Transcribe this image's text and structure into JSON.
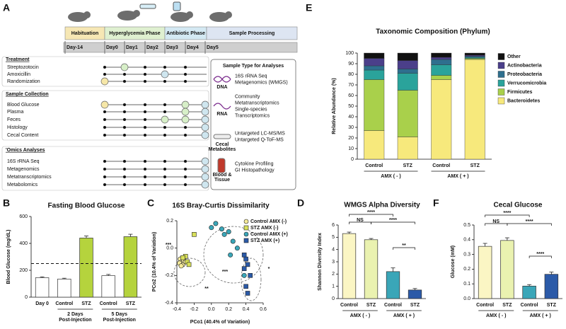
{
  "panel_a": {
    "label": "A",
    "phases": [
      "Habituation",
      "Hyperglycemia Phase",
      "Antibiotic Phase",
      "Sample Processing"
    ],
    "days": [
      "Day-14",
      "Day0",
      "Day1",
      "Day2",
      "Day3",
      "Day4",
      "Day5"
    ],
    "sections": [
      {
        "title": "Treatment",
        "rows": [
          "Streptozotocin",
          "Amoxicillin",
          "Randomization"
        ]
      },
      {
        "title": "Sample Collection",
        "rows": [
          "Blood Glucose",
          "Plasma",
          "Feces",
          "Histology",
          "Cecal Content"
        ]
      },
      {
        "title": "'Omics Analyses",
        "rows": [
          "16S rRNA Seq",
          "Metagenomics",
          "Metatranscriptomics",
          "Metabolomics"
        ]
      }
    ],
    "sample_types": {
      "title": "Sample Type for Analyses",
      "items": [
        {
          "icon_label": [
            "DNA"
          ],
          "lines": [
            "16S rRNA Seq",
            "Metagenomics (WMGS)"
          ]
        },
        {
          "icon_label": [
            "RNA"
          ],
          "lines": [
            "Community",
            "Metatranscriptomics",
            "Single-species",
            "Transcriptomics"
          ]
        },
        {
          "icon_label": [
            "Cecal",
            "Metabolites"
          ],
          "lines": [
            "Untargeted LC-MS/MS",
            "Untargeted Q-ToF-MS"
          ]
        },
        {
          "icon_label": [
            "Blood &",
            "Tissue"
          ],
          "lines": [
            "Cytokine Profiling",
            "GI Histopathology"
          ]
        }
      ]
    }
  },
  "chart_data": [
    {
      "panel_label": "B",
      "type": "bar",
      "title": "Fasting Blood Glucose",
      "y_label": "Blood Glucose (mg/dL)",
      "categories": [
        "Day 0",
        "Control",
        "STZ",
        "Control",
        "STZ"
      ],
      "group_labels": [
        [
          "2 Days",
          "Post-Injection"
        ],
        [
          "5 Days",
          "Post-Injection"
        ]
      ],
      "values": [
        145,
        135,
        440,
        160,
        450
      ],
      "errors": [
        6,
        6,
        15,
        9,
        18
      ],
      "colors": [
        "#ffffff",
        "#ffffff",
        "#b5d33d",
        "#ffffff",
        "#b5d33d"
      ],
      "ylim": [
        0,
        600
      ],
      "yticks": [
        0,
        200,
        400,
        600
      ],
      "reference_line": 250
    },
    {
      "panel_label": "C",
      "type": "scatter",
      "title": "16S Bray-Curtis Dissimilarity",
      "x_label": "PCo1 (40.4% of Variation)",
      "y_label": "PCo2 (10.4% of Variation)",
      "xlim": [
        -0.4,
        0.6
      ],
      "ylim": [
        -0.4,
        0.2
      ],
      "xticks": [
        -0.4,
        -0.2,
        {
          "value": 0,
          "label": "0.0"
        },
        0.2,
        0.4,
        0.6
      ],
      "yticks": [
        -0.4,
        -0.2,
        {
          "value": 0,
          "label": "0.0"
        },
        0.2
      ],
      "annotations": [
        "***",
        "***",
        "**",
        "*"
      ],
      "series": [
        {
          "name": "Control AMX (-)",
          "color": "#f6eb9a",
          "marker": "circle",
          "x": [
            -0.36,
            -0.34,
            -0.33,
            -0.37,
            -0.32,
            -0.35,
            -0.3
          ],
          "y": [
            -0.08,
            -0.1,
            -0.12,
            -0.11,
            -0.09,
            -0.13,
            -0.1
          ]
        },
        {
          "name": "STZ AMX (-)",
          "color": "#d8e05a",
          "marker": "square",
          "x": [
            -0.3,
            -0.28,
            -0.33,
            -0.2,
            -0.26
          ],
          "y": [
            -0.06,
            -0.1,
            -0.07,
            0.1,
            -0.12
          ]
        },
        {
          "name": "Control AMX (+)",
          "color": "#3aa6b8",
          "marker": "circle",
          "x": [
            0.0,
            0.05,
            0.12,
            0.2,
            0.25,
            0.3,
            0.22,
            0.15,
            0.38
          ],
          "y": [
            0.15,
            0.18,
            0.14,
            0.12,
            0.05,
            0.0,
            -0.05,
            0.1,
            -0.2
          ]
        },
        {
          "name": "STZ AMX (+)",
          "color": "#2b5aa8",
          "marker": "square",
          "x": [
            0.38,
            0.4,
            0.42,
            0.38,
            0.45,
            0.4,
            0.42
          ],
          "y": [
            -0.05,
            -0.08,
            -0.12,
            -0.15,
            -0.2,
            -0.28,
            -0.33
          ]
        }
      ]
    },
    {
      "panel_label": "D",
      "type": "bar",
      "title": "WMGS Alpha Diversity",
      "y_label": "Shannon Diversity Index",
      "categories": [
        "Control",
        "STZ",
        "Control",
        "STZ"
      ],
      "group_labels": [
        [
          "AMX ( - )"
        ],
        [
          "AMX ( + )"
        ]
      ],
      "values": [
        5.3,
        4.8,
        2.2,
        0.7
      ],
      "errors": [
        0.12,
        0.1,
        0.3,
        0.12
      ],
      "colors": [
        "#fbf6c4",
        "#eaf2b0",
        "#3aa6b8",
        "#2b5aa8"
      ],
      "ylim": [
        0,
        6
      ],
      "yticks": [
        0,
        1,
        2,
        3,
        4,
        5,
        6
      ],
      "annotations": [
        "****",
        "NS",
        "****",
        "**"
      ]
    },
    {
      "panel_label": "E",
      "type": "stacked_bar",
      "title": "Taxonomic Composition (Phylum)",
      "y_label": "Relative Abundance (%)",
      "categories": [
        "Control",
        "STZ",
        "Control",
        "STZ"
      ],
      "group_labels": [
        [
          "AMX ( - )"
        ],
        [
          "AMX ( + )"
        ]
      ],
      "ylim": [
        0,
        100
      ],
      "yticks": [
        0,
        10,
        20,
        30,
        40,
        50,
        60,
        70,
        80,
        90,
        100
      ],
      "series": [
        {
          "name": "Bacteroidetes",
          "color": "#f7e97c",
          "values": [
            27,
            21,
            75,
            94
          ]
        },
        {
          "name": "Firmicutes",
          "color": "#a9d04b",
          "values": [
            48,
            44,
            4,
            1
          ]
        },
        {
          "name": "Verrucomicrobia",
          "color": "#2aa39b",
          "values": [
            9,
            16,
            10,
            1
          ]
        },
        {
          "name": "Proteobacteria",
          "color": "#2e6f8e",
          "values": [
            4,
            4,
            5,
            1
          ]
        },
        {
          "name": "Actinobacteria",
          "color": "#4b3f8a",
          "values": [
            7,
            8,
            2,
            1
          ]
        },
        {
          "name": "Other",
          "color": "#111111",
          "values": [
            5,
            7,
            4,
            2
          ]
        }
      ]
    },
    {
      "panel_label": "F",
      "type": "bar",
      "title": "Cecal Glucose",
      "y_label": "Glucose (mM)",
      "categories": [
        "Control",
        "STZ",
        "Control",
        "STZ"
      ],
      "group_labels": [
        [
          "AMX ( - )"
        ],
        [
          "AMX ( + )"
        ]
      ],
      "values": [
        0.355,
        0.395,
        0.085,
        0.165
      ],
      "errors": [
        0.02,
        0.018,
        0.01,
        0.015
      ],
      "colors": [
        "#fbf6c4",
        "#eaf2b0",
        "#3aa6b8",
        "#2b5aa8"
      ],
      "ylim": [
        0,
        0.5
      ],
      "yticks": [
        {
          "value": 0,
          "label": "0.0"
        },
        0.1,
        0.2,
        0.3,
        0.4,
        0.5
      ],
      "annotations": [
        "****",
        "NS",
        "****",
        "****"
      ]
    }
  ]
}
